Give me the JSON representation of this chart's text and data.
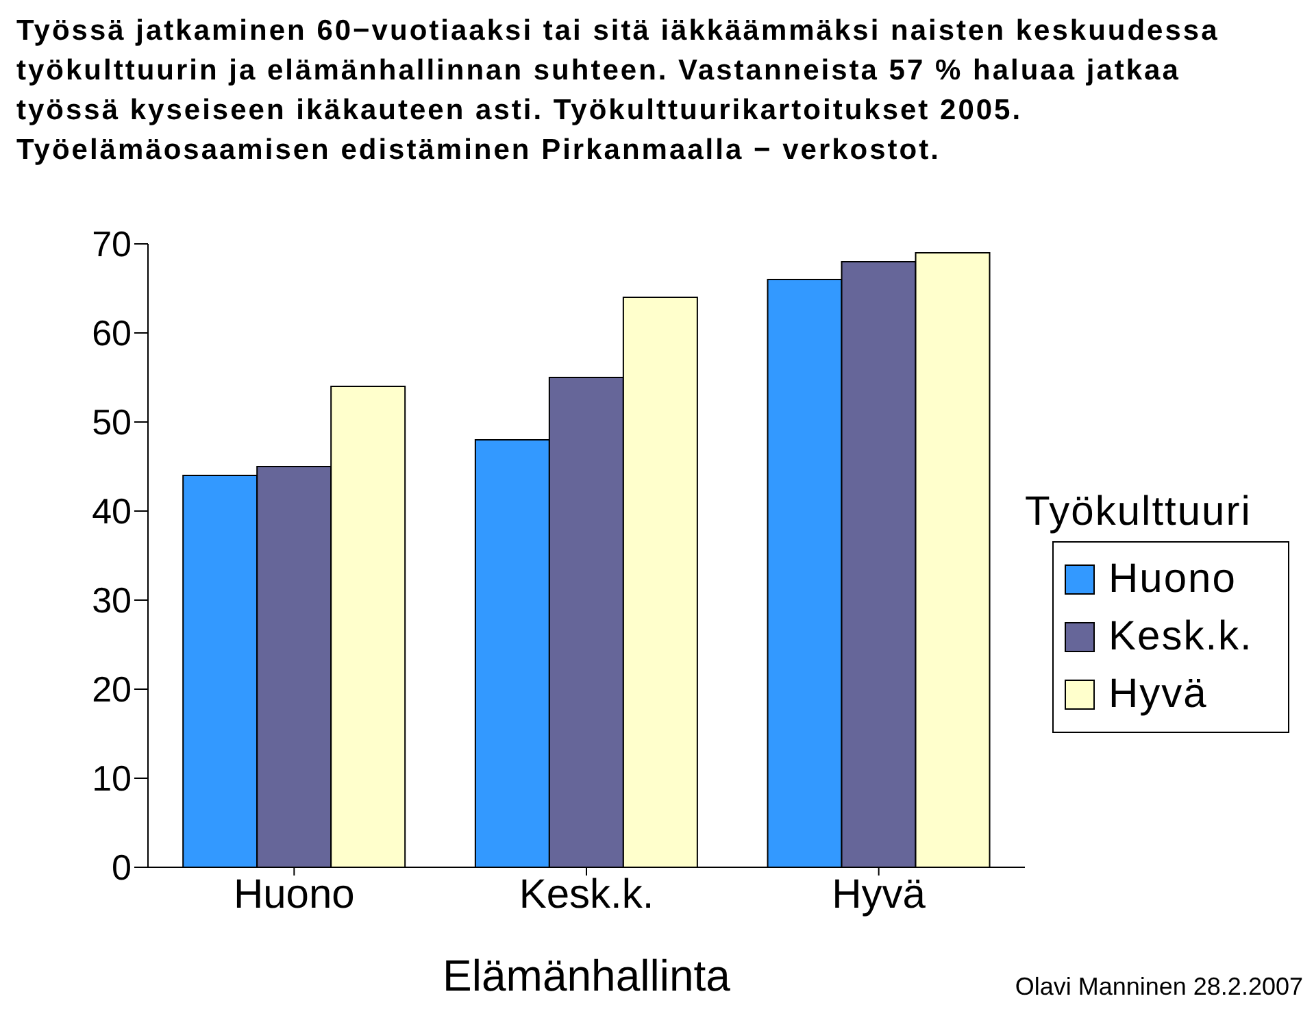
{
  "chart_data": {
    "type": "bar",
    "title": "Työssä jatkaminen 60−vuotiaaksi tai sitä iäkkäämmäksi naisten keskuudessa työkulttuurin ja elämänhallinnan suhteen. Vastanneista 57 % haluaa jatkaa työssä kyseiseen ikäkauteen asti. Työkulttuurikartoitukset 2005. Työelämäosaamisen edistäminen Pirkanmaalla − verkostot.",
    "xlabel": "Elämänhallinta",
    "legend_title": "Työkulttuuri",
    "categories": [
      "Huono",
      "Kesk.k.",
      "Hyvä"
    ],
    "series": [
      {
        "name": "Huono",
        "color": "#3399ff",
        "values": [
          44,
          48,
          66
        ]
      },
      {
        "name": "Kesk.k.",
        "color": "#666699",
        "values": [
          45,
          55,
          68
        ]
      },
      {
        "name": "Hyvä",
        "color": "#ffffcc",
        "values": [
          54,
          64,
          69
        ]
      }
    ],
    "ylim": [
      0,
      70
    ],
    "yticks": [
      0,
      10,
      20,
      30,
      40,
      50,
      60,
      70
    ],
    "grid": false,
    "legend": "right",
    "annotations": [
      "Olavi Manninen 28.2.2007"
    ]
  }
}
